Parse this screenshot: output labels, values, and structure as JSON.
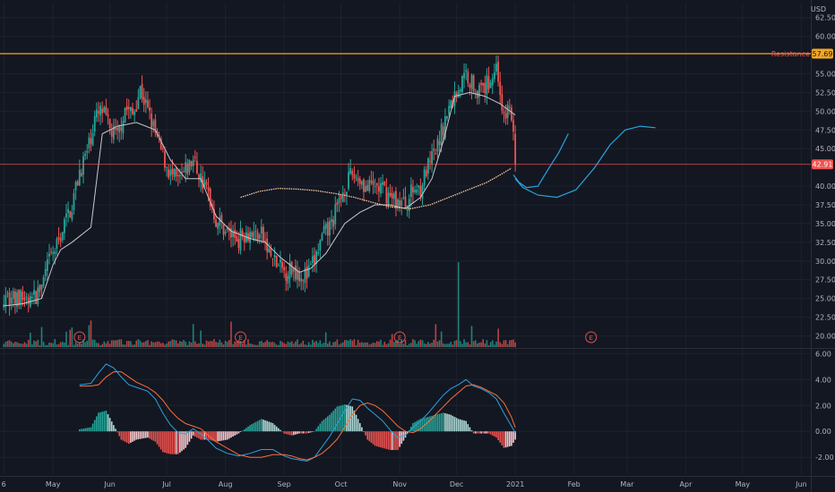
{
  "chart_data": {
    "type": "candlestick",
    "currency": "USD",
    "colors": {
      "background": "#131722",
      "grid": "#1e222d",
      "up": "#26a69a",
      "down": "#ef5350",
      "resistance": "#f5a623",
      "price_line": "#ef5350",
      "ma": "#c8c8cc",
      "ma_long": "#f7c99c",
      "projection": "#2ba3dc",
      "macd": "#2ba3dc",
      "signal": "#ff6d3a"
    },
    "price_axis": {
      "ticks": [
        "62.50",
        "60.00",
        "55.00",
        "52.50",
        "50.00",
        "47.50",
        "45.00",
        "40.00",
        "37.50",
        "35.00",
        "32.50",
        "30.00",
        "27.50",
        "25.00",
        "22.50",
        "20.00"
      ],
      "range": [
        18.5,
        64.5
      ]
    },
    "resistance": {
      "label": "Resistance",
      "value": 57.69,
      "value_label": "57.69"
    },
    "last_price": {
      "value": 42.91,
      "label": "42.91"
    },
    "time_axis": {
      "labels": [
        "6",
        "May",
        "Jun",
        "Jul",
        "Aug",
        "Sep",
        "Oct",
        "Nov",
        "Dec",
        "2021",
        "Feb",
        "Mar",
        "Apr",
        "May",
        "Jun"
      ],
      "label_days": [
        0,
        26,
        56,
        86,
        117,
        148,
        178,
        209,
        239,
        270,
        301,
        329,
        360,
        390,
        421
      ],
      "last_bar_day": 270,
      "range_days": [
        -2,
        426
      ]
    },
    "earnings_markers": [
      {
        "label": "E",
        "day": 40
      },
      {
        "label": "E",
        "day": 125
      },
      {
        "label": "E",
        "day": 209
      },
      {
        "label": "E",
        "day": 310
      }
    ],
    "price_path": [
      [
        0,
        25.5
      ],
      [
        6,
        24.8
      ],
      [
        10,
        25.0
      ],
      [
        14,
        24.5
      ],
      [
        20,
        26.5
      ],
      [
        24,
        30.0
      ],
      [
        28,
        32.0
      ],
      [
        32,
        35.0
      ],
      [
        36,
        37.5
      ],
      [
        40,
        42.0
      ],
      [
        44,
        44.5
      ],
      [
        48,
        49.0
      ],
      [
        52,
        50.0
      ],
      [
        56,
        47.5
      ],
      [
        60,
        46.5
      ],
      [
        64,
        50.5
      ],
      [
        68,
        49.5
      ],
      [
        72,
        53.0
      ],
      [
        76,
        50.0
      ],
      [
        80,
        47.0
      ],
      [
        84,
        44.0
      ],
      [
        88,
        41.5
      ],
      [
        92,
        40.5
      ],
      [
        96,
        42.0
      ],
      [
        100,
        43.5
      ],
      [
        104,
        41.0
      ],
      [
        108,
        39.0
      ],
      [
        112,
        35.5
      ],
      [
        116,
        34.5
      ],
      [
        120,
        33.5
      ],
      [
        124,
        33.0
      ],
      [
        128,
        34.0
      ],
      [
        132,
        33.5
      ],
      [
        136,
        33.5
      ],
      [
        140,
        31.0
      ],
      [
        144,
        29.5
      ],
      [
        148,
        28.5
      ],
      [
        152,
        29.0
      ],
      [
        156,
        28.5
      ],
      [
        160,
        28.0
      ],
      [
        164,
        30.0
      ],
      [
        168,
        33.0
      ],
      [
        172,
        34.5
      ],
      [
        176,
        37.0
      ],
      [
        180,
        40.0
      ],
      [
        184,
        41.5
      ],
      [
        188,
        41.0
      ],
      [
        192,
        39.5
      ],
      [
        196,
        40.0
      ],
      [
        200,
        39.5
      ],
      [
        204,
        38.5
      ],
      [
        208,
        38.0
      ],
      [
        212,
        37.5
      ],
      [
        216,
        39.5
      ],
      [
        220,
        40.0
      ],
      [
        224,
        42.5
      ],
      [
        228,
        44.5
      ],
      [
        232,
        48.0
      ],
      [
        236,
        51.0
      ],
      [
        240,
        53.0
      ],
      [
        244,
        55.0
      ],
      [
        248,
        53.5
      ],
      [
        252,
        52.5
      ],
      [
        256,
        54.0
      ],
      [
        260,
        56.0
      ],
      [
        262,
        53.0
      ],
      [
        264,
        48.5
      ],
      [
        266,
        50.5
      ],
      [
        268,
        49.5
      ],
      [
        270,
        42.91
      ]
    ],
    "ma_short": [
      [
        0,
        24.0
      ],
      [
        10,
        24.3
      ],
      [
        20,
        25.0
      ],
      [
        26,
        29.5
      ],
      [
        30,
        31.5
      ],
      [
        36,
        32.5
      ],
      [
        46,
        34.5
      ],
      [
        52,
        47.0
      ],
      [
        60,
        48.0
      ],
      [
        70,
        48.5
      ],
      [
        80,
        47.5
      ],
      [
        88,
        43.5
      ],
      [
        96,
        41.0
      ],
      [
        104,
        41.0
      ],
      [
        112,
        36.0
      ],
      [
        120,
        34.0
      ],
      [
        130,
        33.0
      ],
      [
        138,
        32.5
      ],
      [
        146,
        30.5
      ],
      [
        156,
        28.5
      ],
      [
        162,
        29.0
      ],
      [
        170,
        31.0
      ],
      [
        180,
        35.0
      ],
      [
        188,
        36.5
      ],
      [
        196,
        37.5
      ],
      [
        204,
        37.5
      ],
      [
        212,
        37.0
      ],
      [
        220,
        38.5
      ],
      [
        226,
        41.0
      ],
      [
        232,
        46.0
      ],
      [
        238,
        52.0
      ],
      [
        246,
        52.5
      ],
      [
        254,
        52.0
      ],
      [
        262,
        51.0
      ],
      [
        270,
        49.5
      ]
    ],
    "ma_long": [
      [
        125,
        38.5
      ],
      [
        135,
        39.3
      ],
      [
        145,
        39.7
      ],
      [
        155,
        39.6
      ],
      [
        165,
        39.4
      ],
      [
        175,
        39.0
      ],
      [
        185,
        38.5
      ],
      [
        195,
        37.8
      ],
      [
        205,
        37.2
      ],
      [
        215,
        37.0
      ],
      [
        225,
        37.5
      ],
      [
        235,
        38.5
      ],
      [
        245,
        39.5
      ],
      [
        255,
        40.5
      ],
      [
        262,
        41.5
      ],
      [
        268,
        42.4
      ]
    ],
    "projection": [
      [
        269,
        41.5
      ],
      [
        272,
        40.5
      ],
      [
        276,
        39.8
      ],
      [
        282,
        40.0
      ],
      [
        288,
        42.5
      ],
      [
        293,
        44.5
      ],
      [
        298,
        47.0
      ]
    ],
    "projection2": [
      [
        270,
        41.0
      ],
      [
        274,
        39.8
      ],
      [
        282,
        38.8
      ],
      [
        292,
        38.5
      ],
      [
        302,
        39.5
      ],
      [
        312,
        42.5
      ],
      [
        320,
        45.5
      ],
      [
        328,
        47.5
      ],
      [
        336,
        48.0
      ],
      [
        344,
        47.8
      ]
    ],
    "volume_spike_day": 240,
    "macd_axis": {
      "ticks": [
        "6.00",
        "4.00",
        "2.00",
        "0.00",
        "-2.00"
      ],
      "range": [
        -3.3,
        6.3
      ]
    },
    "macd": [
      [
        40,
        3.6
      ],
      [
        46,
        3.7
      ],
      [
        50,
        4.5
      ],
      [
        54,
        5.2
      ],
      [
        58,
        4.9
      ],
      [
        62,
        4.2
      ],
      [
        66,
        3.6
      ],
      [
        70,
        3.4
      ],
      [
        76,
        3.1
      ],
      [
        80,
        2.5
      ],
      [
        84,
        1.4
      ],
      [
        88,
        0.5
      ],
      [
        92,
        -0.1
      ],
      [
        96,
        -0.2
      ],
      [
        100,
        0.2
      ],
      [
        104,
        -0.2
      ],
      [
        108,
        -0.7
      ],
      [
        112,
        -1.3
      ],
      [
        118,
        -1.7
      ],
      [
        124,
        -1.9
      ],
      [
        130,
        -1.7
      ],
      [
        136,
        -1.4
      ],
      [
        142,
        -1.4
      ],
      [
        148,
        -1.9
      ],
      [
        152,
        -2.1
      ],
      [
        156,
        -2.2
      ],
      [
        160,
        -2.3
      ],
      [
        164,
        -2.0
      ],
      [
        168,
        -1.2
      ],
      [
        172,
        -0.4
      ],
      [
        176,
        0.6
      ],
      [
        180,
        1.6
      ],
      [
        184,
        2.5
      ],
      [
        188,
        2.4
      ],
      [
        192,
        1.8
      ],
      [
        196,
        1.3
      ],
      [
        200,
        0.8
      ],
      [
        204,
        0.1
      ],
      [
        208,
        -0.5
      ],
      [
        212,
        -0.3
      ],
      [
        216,
        0.3
      ],
      [
        220,
        0.8
      ],
      [
        224,
        1.4
      ],
      [
        228,
        2.1
      ],
      [
        232,
        2.8
      ],
      [
        236,
        3.3
      ],
      [
        240,
        3.6
      ],
      [
        244,
        4.0
      ],
      [
        248,
        3.5
      ],
      [
        252,
        3.3
      ],
      [
        256,
        3.0
      ],
      [
        260,
        2.5
      ],
      [
        264,
        1.4
      ],
      [
        268,
        0.4
      ],
      [
        270,
        -0.1
      ]
    ],
    "signal": [
      [
        40,
        3.5
      ],
      [
        46,
        3.5
      ],
      [
        50,
        3.6
      ],
      [
        54,
        4.2
      ],
      [
        58,
        4.6
      ],
      [
        62,
        4.6
      ],
      [
        66,
        4.2
      ],
      [
        70,
        3.8
      ],
      [
        76,
        3.4
      ],
      [
        80,
        3.0
      ],
      [
        84,
        2.4
      ],
      [
        88,
        1.6
      ],
      [
        92,
        1.0
      ],
      [
        96,
        0.6
      ],
      [
        100,
        0.4
      ],
      [
        104,
        0.2
      ],
      [
        108,
        -0.3
      ],
      [
        112,
        -0.8
      ],
      [
        118,
        -1.3
      ],
      [
        124,
        -1.8
      ],
      [
        130,
        -2.0
      ],
      [
        136,
        -2.0
      ],
      [
        142,
        -1.8
      ],
      [
        148,
        -1.8
      ],
      [
        152,
        -1.9
      ],
      [
        156,
        -2.1
      ],
      [
        160,
        -2.2
      ],
      [
        164,
        -2.0
      ],
      [
        168,
        -1.7
      ],
      [
        172,
        -1.2
      ],
      [
        176,
        -0.6
      ],
      [
        180,
        0.3
      ],
      [
        184,
        1.3
      ],
      [
        188,
        2.0
      ],
      [
        192,
        2.2
      ],
      [
        196,
        2.0
      ],
      [
        200,
        1.6
      ],
      [
        204,
        1.0
      ],
      [
        208,
        0.4
      ],
      [
        212,
        0.0
      ],
      [
        216,
        -0.1
      ],
      [
        220,
        0.2
      ],
      [
        224,
        0.7
      ],
      [
        228,
        1.3
      ],
      [
        232,
        1.9
      ],
      [
        236,
        2.5
      ],
      [
        240,
        3.0
      ],
      [
        244,
        3.5
      ],
      [
        248,
        3.6
      ],
      [
        252,
        3.4
      ],
      [
        256,
        3.1
      ],
      [
        260,
        2.8
      ],
      [
        264,
        2.2
      ],
      [
        268,
        1.1
      ],
      [
        270,
        0.3
      ]
    ]
  }
}
